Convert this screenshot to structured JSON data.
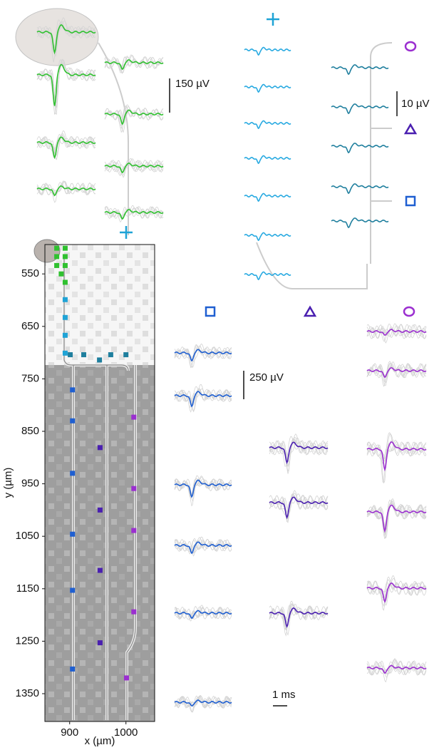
{
  "chart_data": {
    "type": "scatter",
    "xlabel": "x (µm)",
    "ylabel": "y (µm)",
    "xlim": [
      856,
      1051
    ],
    "ylim": [
      1403,
      494
    ],
    "xticks": [
      900,
      1000
    ],
    "yticks": [
      550,
      650,
      750,
      850,
      950,
      1050,
      1150,
      1250,
      1350
    ],
    "series": [
      {
        "color": "#2fc12f",
        "x": [
          877,
          892,
          877,
          892,
          877,
          892,
          885,
          892
        ],
        "values": [
          501,
          501,
          517,
          517,
          534,
          534,
          550,
          566
        ]
      },
      {
        "color": "#1fa3d6",
        "x": [
          892,
          892,
          892,
          892
        ],
        "values": [
          599,
          633,
          667,
          701
        ]
      },
      {
        "color": "#1f7f9e",
        "x": [
          901,
          925,
          953,
          973,
          1000
        ],
        "values": [
          704,
          704,
          714,
          704,
          704
        ]
      },
      {
        "color": "#1f5fd1",
        "x": [
          905,
          905,
          905,
          905,
          905,
          905
        ],
        "values": [
          771,
          830,
          930,
          1046,
          1153,
          1303
        ]
      },
      {
        "color": "#4a1fb0",
        "x": [
          954,
          954,
          954,
          954
        ],
        "values": [
          881,
          1000,
          1115,
          1253
        ]
      },
      {
        "color": "#9b2fd0",
        "x": [
          1014,
          1014,
          1014,
          1014,
          1001
        ],
        "values": [
          823,
          959,
          1039,
          1194,
          1320
        ]
      }
    ],
    "annotations": [
      "150 µV",
      "10 µV",
      "250 µV",
      "1 ms"
    ]
  }
}
